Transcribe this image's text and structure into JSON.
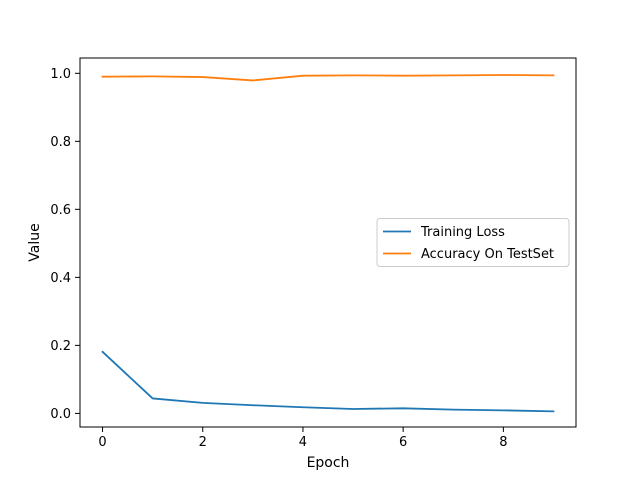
{
  "chart_data": {
    "type": "line",
    "xlabel": "Epoch",
    "ylabel": "Value",
    "x": [
      0,
      1,
      2,
      3,
      4,
      5,
      6,
      7,
      8,
      9
    ],
    "xlim": [
      -0.45,
      9.45
    ],
    "ylim": [
      -0.04,
      1.045
    ],
    "xticks": [
      0,
      2,
      4,
      6,
      8
    ],
    "yticks": [
      0.0,
      0.2,
      0.4,
      0.6,
      0.8,
      1.0
    ],
    "xtick_labels": [
      "0",
      "2",
      "4",
      "6",
      "8"
    ],
    "ytick_labels": [
      "0.0",
      "0.2",
      "0.4",
      "0.6",
      "0.8",
      "1.0"
    ],
    "grid": false,
    "legend_position": "center-right",
    "series": [
      {
        "name": "Training Loss",
        "color": "#1f77b4",
        "values": [
          0.181,
          0.044,
          0.031,
          0.024,
          0.018,
          0.013,
          0.015,
          0.011,
          0.009,
          0.006
        ]
      },
      {
        "name": "Accuracy On TestSet",
        "color": "#ff7f0e",
        "values": [
          0.99,
          0.991,
          0.989,
          0.979,
          0.993,
          0.994,
          0.993,
          0.994,
          0.995,
          0.994
        ]
      }
    ]
  }
}
